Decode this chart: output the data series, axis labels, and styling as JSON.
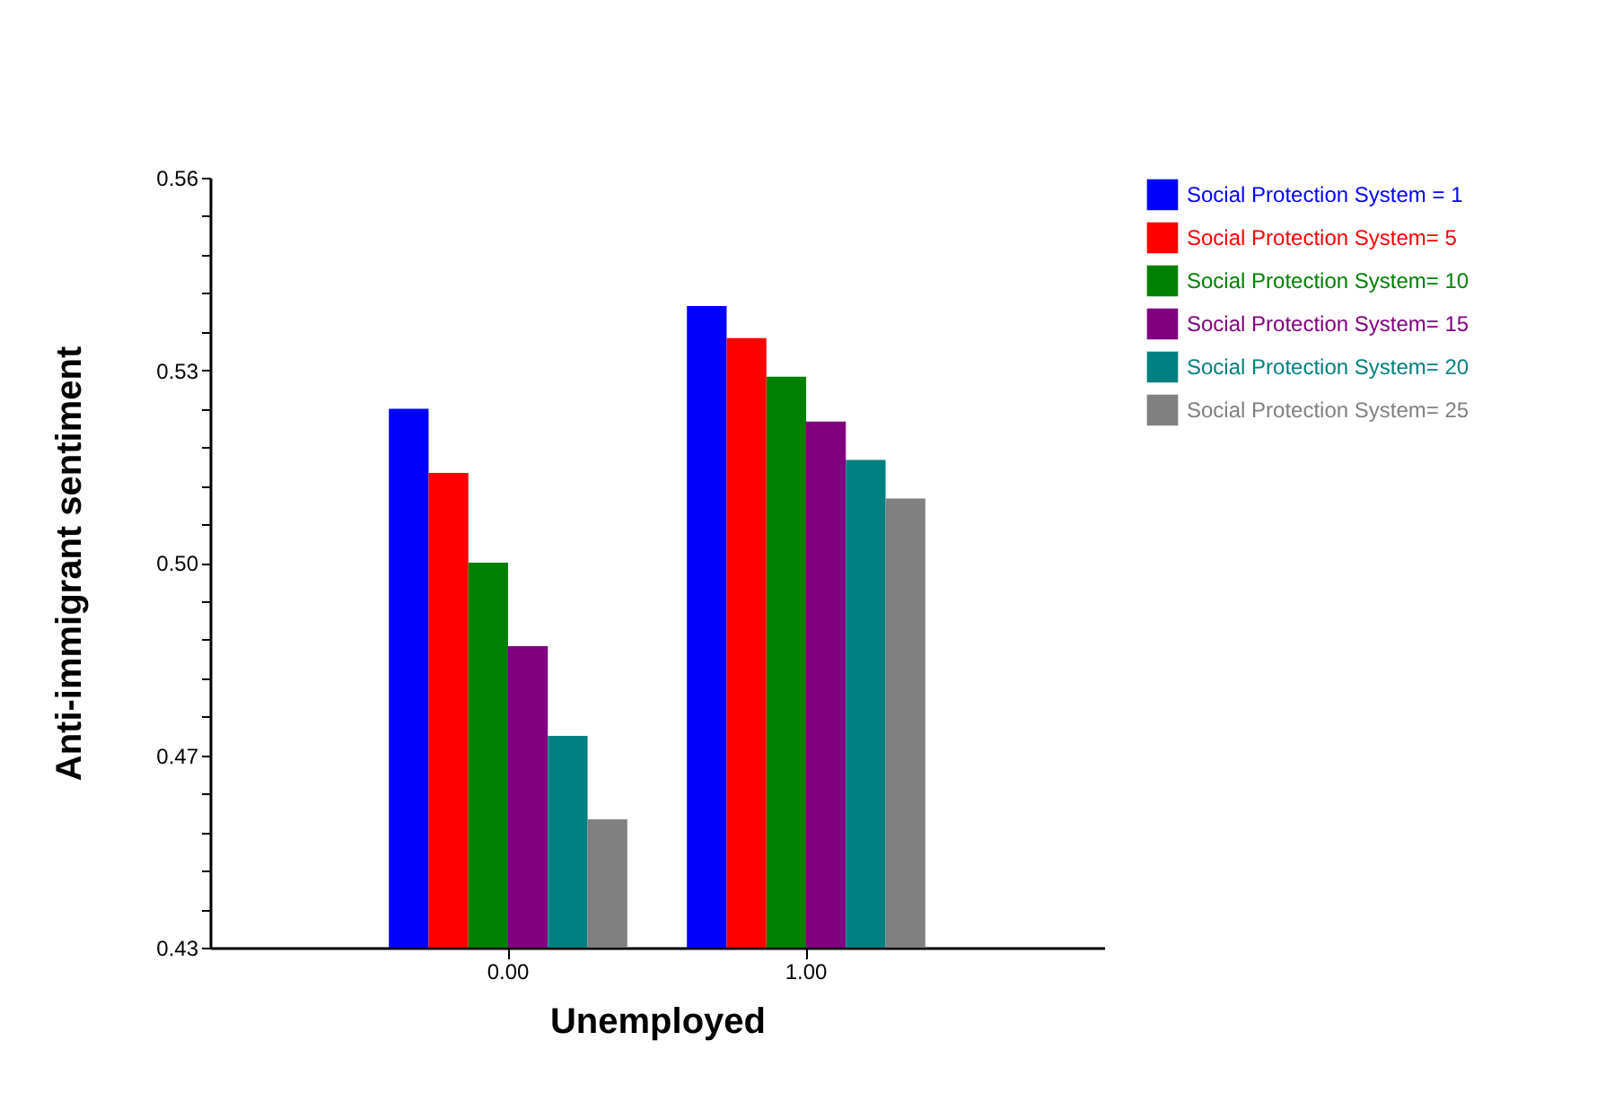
{
  "chart_data": {
    "type": "bar",
    "xlabel": "Unemployed",
    "ylabel": "Anti-immigrant sentiment",
    "categories": [
      "0.00",
      "1.00"
    ],
    "series": [
      {
        "name": "Social Protection System = 1",
        "color": "#0000ff",
        "values": [
          0.519,
          0.535
        ]
      },
      {
        "name": "Social Protection System= 5",
        "color": "#ff0000",
        "values": [
          0.509,
          0.53
        ]
      },
      {
        "name": "Social Protection System= 10",
        "color": "#008000",
        "values": [
          0.495,
          0.524
        ]
      },
      {
        "name": "Social Protection System= 15",
        "color": "#800080",
        "values": [
          0.482,
          0.517
        ]
      },
      {
        "name": "Social Protection System= 20",
        "color": "#008080",
        "values": [
          0.468,
          0.511
        ]
      },
      {
        "name": "Social Protection System= 25",
        "color": "#808080",
        "values": [
          0.455,
          0.505
        ]
      }
    ],
    "ylim": [
      0.435,
      0.555
    ],
    "yticks": [
      {
        "value": 0.435,
        "label": "0.43"
      },
      {
        "value": 0.441,
        "label": null
      },
      {
        "value": 0.447,
        "label": null
      },
      {
        "value": 0.453,
        "label": null
      },
      {
        "value": 0.459,
        "label": null
      },
      {
        "value": 0.465,
        "label": "0.47"
      },
      {
        "value": 0.471,
        "label": null
      },
      {
        "value": 0.477,
        "label": null
      },
      {
        "value": 0.483,
        "label": null
      },
      {
        "value": 0.489,
        "label": null
      },
      {
        "value": 0.495,
        "label": "0.50"
      },
      {
        "value": 0.501,
        "label": null
      },
      {
        "value": 0.507,
        "label": null
      },
      {
        "value": 0.513,
        "label": null
      },
      {
        "value": 0.519,
        "label": null
      },
      {
        "value": 0.525,
        "label": "0.53"
      },
      {
        "value": 0.531,
        "label": null
      },
      {
        "value": 0.537,
        "label": null
      },
      {
        "value": 0.543,
        "label": null
      },
      {
        "value": 0.549,
        "label": null
      },
      {
        "value": 0.555,
        "label": "0.56"
      }
    ],
    "grid": false,
    "legend": "top right"
  }
}
